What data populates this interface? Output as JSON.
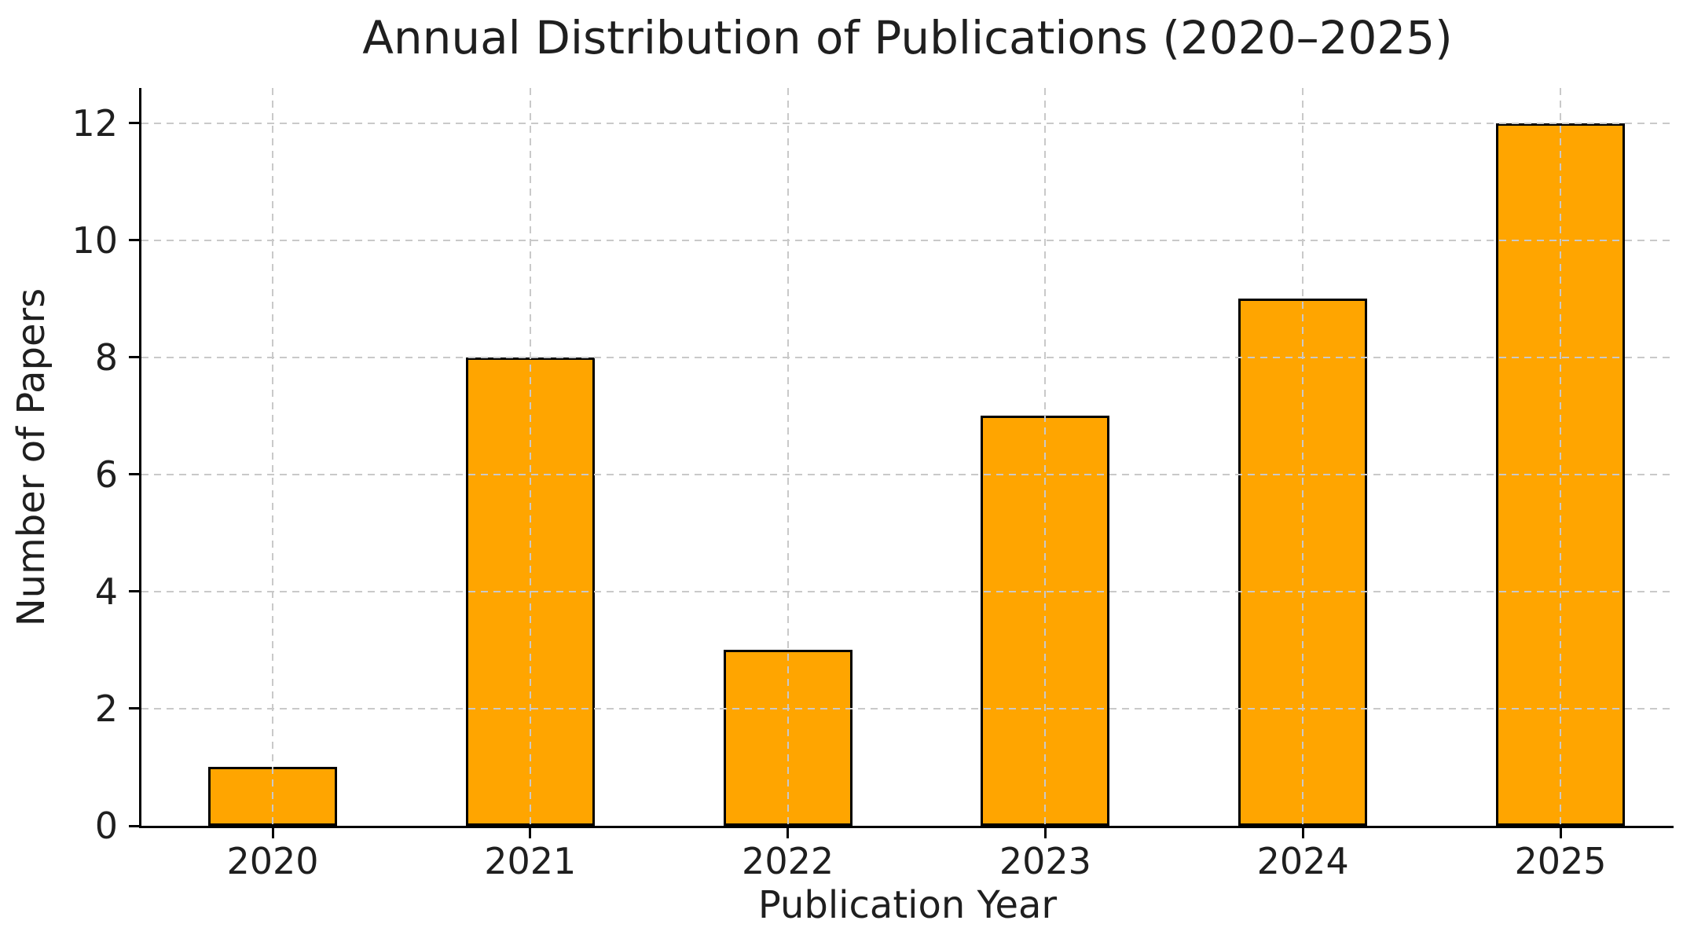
{
  "chart_data": {
    "type": "bar",
    "title": "Annual Distribution of Publications (2020–2025)",
    "xlabel": "Publication Year",
    "ylabel": "Number of Papers",
    "categories": [
      "2020",
      "2021",
      "2022",
      "2023",
      "2024",
      "2025"
    ],
    "values": [
      1,
      8,
      3,
      7,
      9,
      12
    ],
    "yticks": [
      0,
      2,
      4,
      6,
      8,
      10,
      12
    ],
    "ylim": [
      0,
      12.6
    ],
    "grid": "dashed, drawn above bars, horizontal and vertical",
    "legend": "none",
    "bar_color": "#FFA500",
    "bar_edge_color": "#000000",
    "grid_color": "#c9c9c9",
    "axis_color": "#000000",
    "text_color": "#1f1f1f",
    "background": "#ffffff"
  }
}
